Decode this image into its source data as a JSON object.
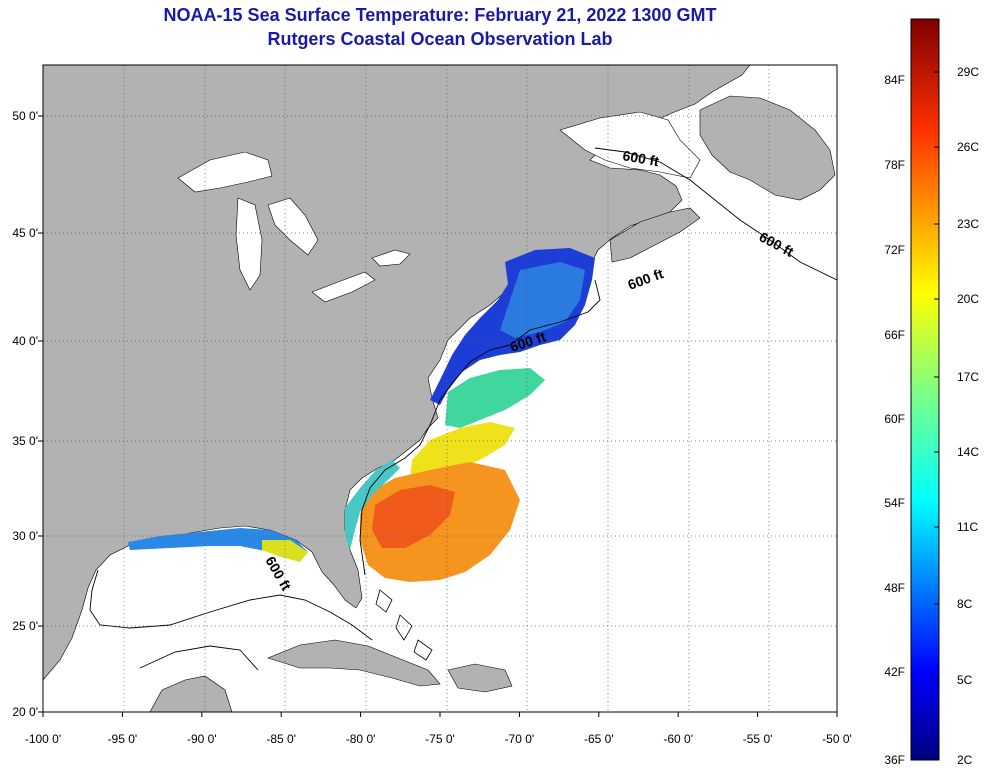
{
  "title": {
    "line1": "NOAA-15 Sea Surface Temperature:  February 21, 2022 1300 GMT",
    "line2": "Rutgers Coastal Ocean Observation Lab"
  },
  "map": {
    "lon_range": [
      -100,
      -50
    ],
    "lat_range": [
      20,
      52.5
    ],
    "lon_ticks": [
      -100,
      -95,
      -90,
      -85,
      -80,
      -75,
      -70,
      -65,
      -60,
      -55,
      -50
    ],
    "lat_ticks": [
      20,
      25,
      30,
      35,
      40,
      45,
      50
    ],
    "lon_labels": [
      "-100 0'",
      "-95 0'",
      "-90 0'",
      "-85 0'",
      "-80 0'",
      "-75 0'",
      "-70 0'",
      "-65 0'",
      "-60 0'",
      "-55 0'",
      "-50 0'"
    ],
    "lat_labels": [
      "20 0'",
      "25 0'",
      "30 0'",
      "35 0'",
      "40 0'",
      "45 0'",
      "50 0'"
    ],
    "land_color": "#b2b2b2",
    "ocean_color": "#ffffff",
    "contour_label": "600 ft"
  },
  "colorbar": {
    "f_labels": [
      "84F",
      "78F",
      "72F",
      "66F",
      "60F",
      "54F",
      "48F",
      "42F",
      "36F"
    ],
    "c_labels": [
      "29C",
      "26C",
      "23C",
      "20C",
      "17C",
      "14C",
      "11C",
      "8C",
      "5C",
      "2C"
    ],
    "min_label": "36F",
    "min_c_label": "2C"
  }
}
